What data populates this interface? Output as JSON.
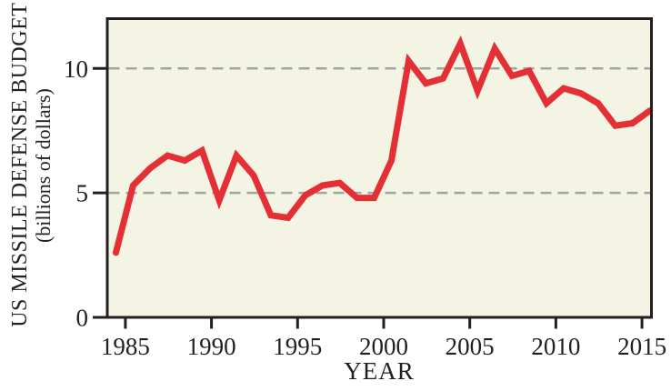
{
  "chart_data": {
    "type": "line",
    "title": "",
    "xlabel": "YEAR",
    "ylabel": "US MISSILE DEFENSE BUDGET",
    "ylabel_sub": "(billions of dollars)",
    "x_ticks": [
      1985,
      1990,
      1995,
      2000,
      2005,
      2010,
      2015
    ],
    "y_ticks": [
      0,
      5,
      10
    ],
    "xlim": [
      1984.5,
      2016.1
    ],
    "ylim": [
      0,
      12
    ],
    "gridlines_y": [
      5,
      10
    ],
    "grid_style": "dashed",
    "legend": "none",
    "series": [
      {
        "name": "US missile defense budget (billions of dollars)",
        "years": [
          1985,
          1986,
          1987,
          1988,
          1989,
          1990,
          1991,
          1992,
          1993,
          1994,
          1995,
          1996,
          1997,
          1998,
          1999,
          2000,
          2001,
          2002,
          2003,
          2004,
          2005,
          2006,
          2007,
          2008,
          2009,
          2010,
          2011,
          2012,
          2013,
          2014,
          2015,
          2016
        ],
        "values": [
          2.6,
          5.3,
          6.0,
          6.5,
          6.3,
          6.7,
          4.7,
          6.5,
          5.7,
          4.1,
          4.0,
          4.9,
          5.3,
          5.4,
          4.8,
          4.8,
          6.3,
          10.3,
          9.4,
          9.6,
          11.0,
          9.1,
          10.8,
          9.7,
          9.9,
          8.6,
          9.2,
          9.0,
          8.6,
          7.7,
          7.8,
          8.3
        ]
      }
    ],
    "colors": {
      "line": "#e42f35",
      "plot_bg": "#f3f4e3",
      "grid": "#a4a4a4",
      "axis": "#231f20",
      "page_bg": "#ffffff"
    }
  }
}
